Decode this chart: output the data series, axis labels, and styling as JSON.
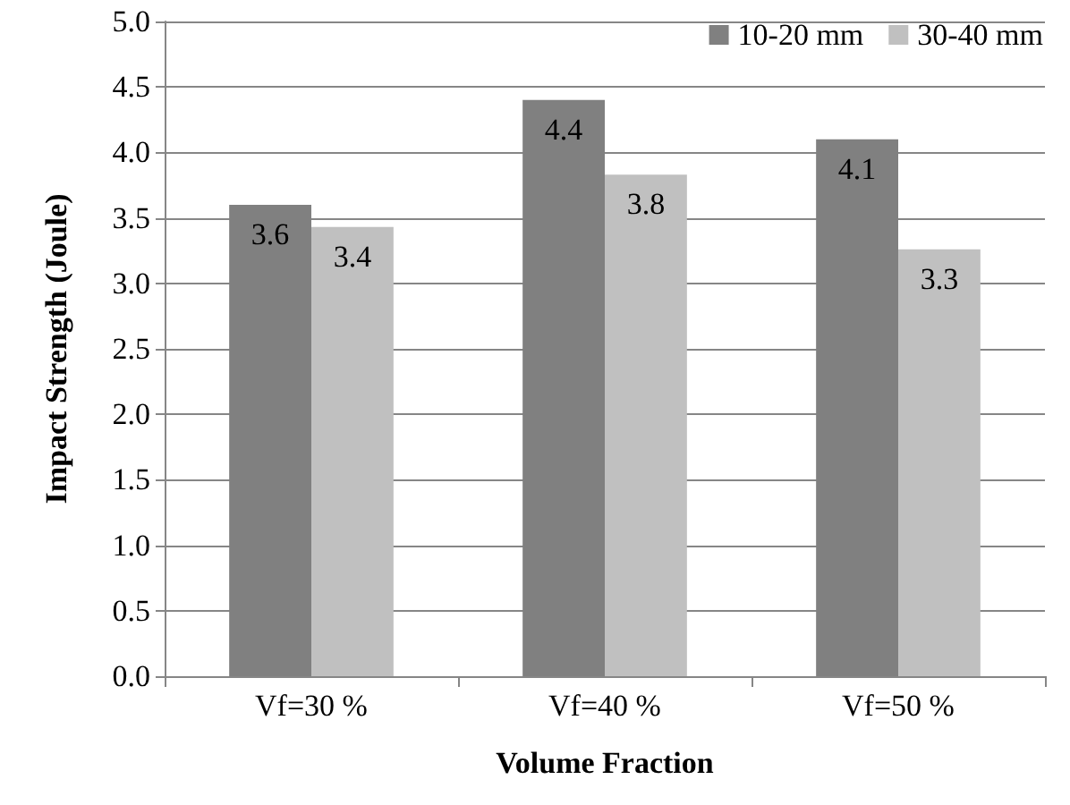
{
  "chart_data": {
    "type": "bar",
    "xlabel": "Volume Fraction",
    "ylabel": "Impact Strength (Joule)",
    "categories": [
      "Vf=30 %",
      "Vf=40 %",
      "Vf=50 %"
    ],
    "series": [
      {
        "name": "10-20 mm",
        "color": "#808080",
        "values": [
          3.6,
          4.4,
          4.1
        ],
        "value_labels": [
          "3.6",
          "4.4",
          "4.1"
        ]
      },
      {
        "name": "30-40 mm",
        "color": "#c0c0c0",
        "values": [
          3.43,
          3.83,
          3.26
        ],
        "value_labels": [
          "3.4",
          "3.8",
          "3.3"
        ]
      }
    ],
    "ylim": [
      0,
      5
    ],
    "yticks": [
      {
        "value": 0,
        "label": "0.0"
      },
      {
        "value": 0.5,
        "label": "0.5"
      },
      {
        "value": 1,
        "label": "1.0"
      },
      {
        "value": 1.5,
        "label": "1.5"
      },
      {
        "value": 2,
        "label": "2.0"
      },
      {
        "value": 2.5,
        "label": "2.5"
      },
      {
        "value": 3,
        "label": "3.0"
      },
      {
        "value": 3.5,
        "label": "3.5"
      },
      {
        "value": 4,
        "label": "4.0"
      },
      {
        "value": 4.5,
        "label": "4.5"
      },
      {
        "value": 5,
        "label": "5.0"
      }
    ],
    "grid": "y",
    "legend": "top right"
  }
}
